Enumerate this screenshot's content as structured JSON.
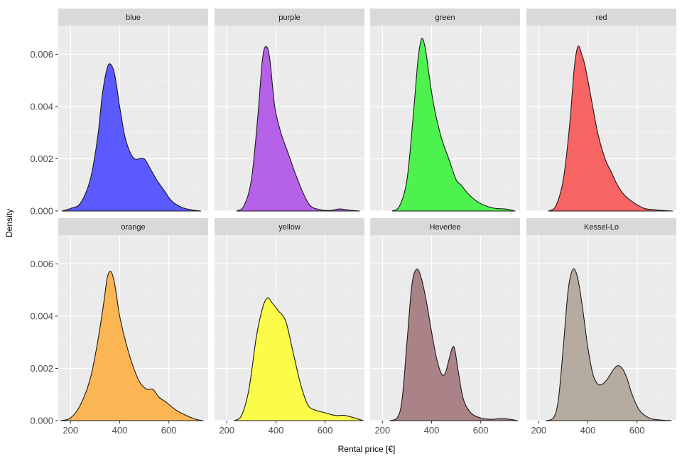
{
  "chart_data": {
    "type": "area",
    "subtype": "faceted-density",
    "title": "",
    "xlabel": "Rental price [€]",
    "ylabel": "Density",
    "xlim": [
      150,
      760
    ],
    "ylim": [
      0,
      0.0071
    ],
    "x_ticks": [
      200,
      400,
      600
    ],
    "y_ticks": [
      0.0,
      0.002,
      0.004,
      0.006
    ],
    "x_tick_labels": [
      "200",
      "400",
      "600"
    ],
    "y_tick_labels": [
      "0.000",
      "0.002",
      "0.004",
      "0.006"
    ],
    "grid": true,
    "facet_layout": {
      "rows": 2,
      "cols": 4
    },
    "series": [
      {
        "name": "blue",
        "color": "#5a5aff",
        "x": [
          165,
          200,
          240,
          280,
          310,
          330,
          350,
          365,
          380,
          400,
          420,
          440,
          460,
          480,
          500,
          520,
          550,
          580,
          610,
          650,
          690,
          730
        ],
        "y": [
          0,
          0.0001,
          0.0003,
          0.0012,
          0.0028,
          0.0045,
          0.0055,
          0.0056,
          0.0052,
          0.004,
          0.0029,
          0.0023,
          0.002,
          0.002,
          0.002,
          0.0017,
          0.0012,
          0.0008,
          0.0004,
          0.00015,
          5e-05,
          0
        ]
      },
      {
        "name": "purple",
        "color": "#b561e8",
        "x": [
          240,
          270,
          300,
          325,
          345,
          360,
          375,
          395,
          420,
          450,
          480,
          510,
          540,
          580,
          620,
          660,
          700,
          740
        ],
        "y": [
          0,
          0.0002,
          0.0012,
          0.0035,
          0.0058,
          0.0063,
          0.0058,
          0.004,
          0.003,
          0.0022,
          0.0014,
          0.0007,
          0.0002,
          5e-05,
          2e-05,
          8e-05,
          3e-05,
          0
        ]
      },
      {
        "name": "green",
        "color": "#4ef24e",
        "x": [
          240,
          270,
          300,
          325,
          345,
          360,
          375,
          390,
          410,
          440,
          470,
          500,
          520,
          545,
          580,
          620,
          660,
          700,
          740
        ],
        "y": [
          0,
          0.0002,
          0.0012,
          0.0036,
          0.0058,
          0.0066,
          0.0062,
          0.0052,
          0.004,
          0.0028,
          0.002,
          0.0012,
          0.001,
          0.0007,
          0.0004,
          0.0002,
          0.0001,
          8e-05,
          0
        ]
      },
      {
        "name": "red",
        "color": "#f76464",
        "x": [
          240,
          270,
          300,
          325,
          345,
          360,
          375,
          390,
          410,
          440,
          470,
          495,
          520,
          550,
          590,
          630,
          670,
          710,
          745
        ],
        "y": [
          0,
          0.0002,
          0.0012,
          0.0032,
          0.0055,
          0.0063,
          0.006,
          0.0055,
          0.0045,
          0.003,
          0.002,
          0.0015,
          0.001,
          0.0006,
          0.0003,
          0.0001,
          5e-05,
          2e-05,
          0
        ]
      },
      {
        "name": "orange",
        "color": "#fbb653",
        "x": [
          160,
          200,
          240,
          280,
          310,
          335,
          350,
          365,
          380,
          400,
          425,
          450,
          480,
          510,
          535,
          560,
          590,
          630,
          670,
          710,
          740
        ],
        "y": [
          0,
          0.0001,
          0.0006,
          0.0016,
          0.003,
          0.0045,
          0.0055,
          0.0057,
          0.0052,
          0.004,
          0.003,
          0.0022,
          0.0015,
          0.0012,
          0.0012,
          0.0009,
          0.0007,
          0.0004,
          0.0002,
          5e-05,
          0
        ]
      },
      {
        "name": "yellow",
        "color": "#fbfb4a",
        "x": [
          230,
          260,
          290,
          320,
          345,
          365,
          385,
          410,
          440,
          470,
          500,
          530,
          560,
          600,
          640,
          680,
          720,
          755
        ],
        "y": [
          0,
          0.0002,
          0.0012,
          0.0032,
          0.0043,
          0.0047,
          0.0045,
          0.0042,
          0.0038,
          0.0026,
          0.0014,
          0.0006,
          0.0004,
          0.0003,
          0.0002,
          0.0002,
          0.0001,
          0
        ]
      },
      {
        "name": "Heverlee",
        "color": "#aa8389",
        "x": [
          230,
          260,
          280,
          300,
          320,
          340,
          360,
          380,
          400,
          420,
          440,
          455,
          470,
          485,
          495,
          510,
          530,
          560,
          600,
          640,
          680,
          720,
          750
        ],
        "y": [
          0,
          0.0001,
          0.0008,
          0.003,
          0.0052,
          0.0058,
          0.0054,
          0.0045,
          0.0034,
          0.0024,
          0.0018,
          0.0018,
          0.0023,
          0.0028,
          0.0027,
          0.0018,
          0.0008,
          0.0003,
          0.0001,
          5e-05,
          8e-05,
          5e-05,
          0
        ]
      },
      {
        "name": "Kessel-Lo",
        "color": "#b5aba0",
        "x": [
          230,
          260,
          280,
          300,
          320,
          340,
          360,
          380,
          400,
          420,
          440,
          460,
          480,
          500,
          520,
          540,
          560,
          580,
          610,
          650,
          690,
          740
        ],
        "y": [
          0,
          0.0001,
          0.0008,
          0.0028,
          0.005,
          0.0058,
          0.0054,
          0.0042,
          0.0028,
          0.0018,
          0.0014,
          0.0014,
          0.0016,
          0.0019,
          0.0021,
          0.002,
          0.0016,
          0.001,
          0.0004,
          0.0001,
          3e-05,
          0
        ]
      }
    ]
  }
}
